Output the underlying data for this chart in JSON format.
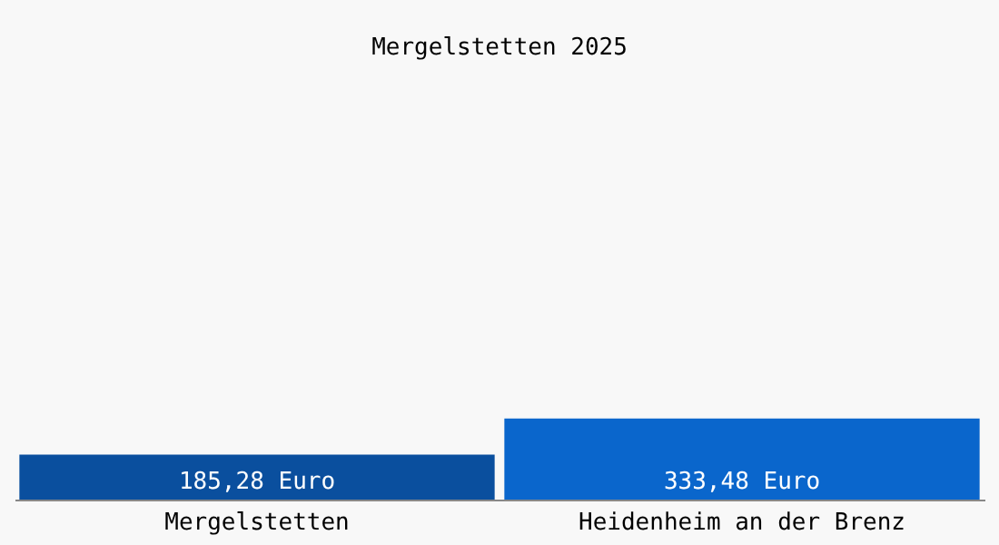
{
  "chart_data": {
    "type": "bar",
    "title": "Mergelstetten 2025",
    "categories": [
      "Mergelstetten",
      "Heidenheim an der Brenz"
    ],
    "values": [
      185.28,
      333.48
    ],
    "colors": [
      "#0a4f9e",
      "#0a66cc"
    ],
    "value_labels": [
      "185,28 Euro",
      "333,48 Euro"
    ],
    "grid": false,
    "tick_labels": "x"
  }
}
